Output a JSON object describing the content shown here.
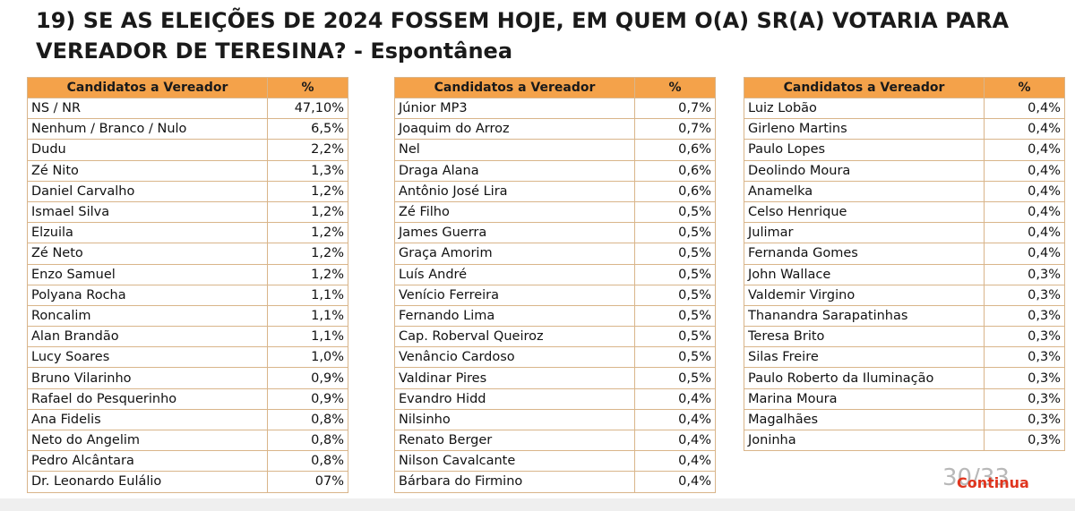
{
  "title": {
    "line1": "19) SE AS ELEIÇÕES DE 2024 FOSSEM HOJE, EM QUEM O(A) SR(A) VOTARIA PARA",
    "line2_main": "VEREADOR DE TERESINA? - ",
    "line2_tag": "Espontânea"
  },
  "columns": {
    "candidate_header": "Candidatos a Vereador",
    "percent_header": "%"
  },
  "table1": [
    {
      "name": "NS / NR",
      "pct": "47,10%"
    },
    {
      "name": "Nenhum / Branco / Nulo",
      "pct": "6,5%"
    },
    {
      "name": "Dudu",
      "pct": "2,2%"
    },
    {
      "name": "Zé Nito",
      "pct": "1,3%"
    },
    {
      "name": "Daniel Carvalho",
      "pct": "1,2%"
    },
    {
      "name": "Ismael Silva",
      "pct": "1,2%"
    },
    {
      "name": "Elzuila",
      "pct": "1,2%"
    },
    {
      "name": "Zé Neto",
      "pct": "1,2%"
    },
    {
      "name": "Enzo Samuel",
      "pct": "1,2%"
    },
    {
      "name": "Polyana Rocha",
      "pct": "1,1%"
    },
    {
      "name": "Roncalim",
      "pct": "1,1%"
    },
    {
      "name": "Alan Brandão",
      "pct": "1,1%"
    },
    {
      "name": "Lucy Soares",
      "pct": "1,0%"
    },
    {
      "name": "Bruno Vilarinho",
      "pct": "0,9%"
    },
    {
      "name": "Rafael do Pesquerinho",
      "pct": "0,9%"
    },
    {
      "name": "Ana Fidelis",
      "pct": "0,8%"
    },
    {
      "name": "Neto do Angelim",
      "pct": "0,8%"
    },
    {
      "name": "Pedro Alcântara",
      "pct": "0,8%"
    },
    {
      "name": "Dr. Leonardo Eulálio",
      "pct": "07%"
    }
  ],
  "table2": [
    {
      "name": "Júnior MP3",
      "pct": "0,7%"
    },
    {
      "name": "Joaquim do Arroz",
      "pct": "0,7%"
    },
    {
      "name": "Nel",
      "pct": "0,6%"
    },
    {
      "name": "Draga Alana",
      "pct": "0,6%"
    },
    {
      "name": "Antônio José Lira",
      "pct": "0,6%"
    },
    {
      "name": "Zé Filho",
      "pct": "0,5%"
    },
    {
      "name": "James Guerra",
      "pct": "0,5%"
    },
    {
      "name": "Graça Amorim",
      "pct": "0,5%"
    },
    {
      "name": "Luís André",
      "pct": "0,5%"
    },
    {
      "name": "Venício Ferreira",
      "pct": "0,5%"
    },
    {
      "name": "Fernando Lima",
      "pct": "0,5%"
    },
    {
      "name": "Cap. Roberval Queiroz",
      "pct": "0,5%"
    },
    {
      "name": "Venâncio Cardoso",
      "pct": "0,5%"
    },
    {
      "name": "Valdinar Pires",
      "pct": "0,5%"
    },
    {
      "name": "Evandro Hidd",
      "pct": "0,4%"
    },
    {
      "name": "Nilsinho",
      "pct": "0,4%"
    },
    {
      "name": "Renato Berger",
      "pct": "0,4%"
    },
    {
      "name": "Nilson Cavalcante",
      "pct": "0,4%"
    },
    {
      "name": "Bárbara do Firmino",
      "pct": "0,4%"
    }
  ],
  "table3": [
    {
      "name": "Luiz Lobão",
      "pct": "0,4%"
    },
    {
      "name": "Girleno Martins",
      "pct": "0,4%"
    },
    {
      "name": "Paulo Lopes",
      "pct": "0,4%"
    },
    {
      "name": "Deolindo Moura",
      "pct": "0,4%"
    },
    {
      "name": "Anamelka",
      "pct": "0,4%"
    },
    {
      "name": "Celso Henrique",
      "pct": "0,4%"
    },
    {
      "name": "Julimar",
      "pct": "0,4%"
    },
    {
      "name": "Fernanda Gomes",
      "pct": "0,4%"
    },
    {
      "name": "John Wallace",
      "pct": "0,3%"
    },
    {
      "name": "Valdemir Virgino",
      "pct": "0,3%"
    },
    {
      "name": "Thanandra Sarapatinhas",
      "pct": "0,3%"
    },
    {
      "name": "Teresa Brito",
      "pct": "0,3%"
    },
    {
      "name": "Silas Freire",
      "pct": "0,3%"
    },
    {
      "name": "Paulo Roberto da Iluminação",
      "pct": "0,3%"
    },
    {
      "name": "Marina Moura",
      "pct": "0,3%"
    },
    {
      "name": "Magalhães",
      "pct": "0,3%"
    },
    {
      "name": "Joninha",
      "pct": "0,3%"
    }
  ],
  "page_number": "30/33",
  "continue_label": "Continua",
  "colors": {
    "header_bg": "#f4a24a",
    "continue": "#e0351e"
  }
}
